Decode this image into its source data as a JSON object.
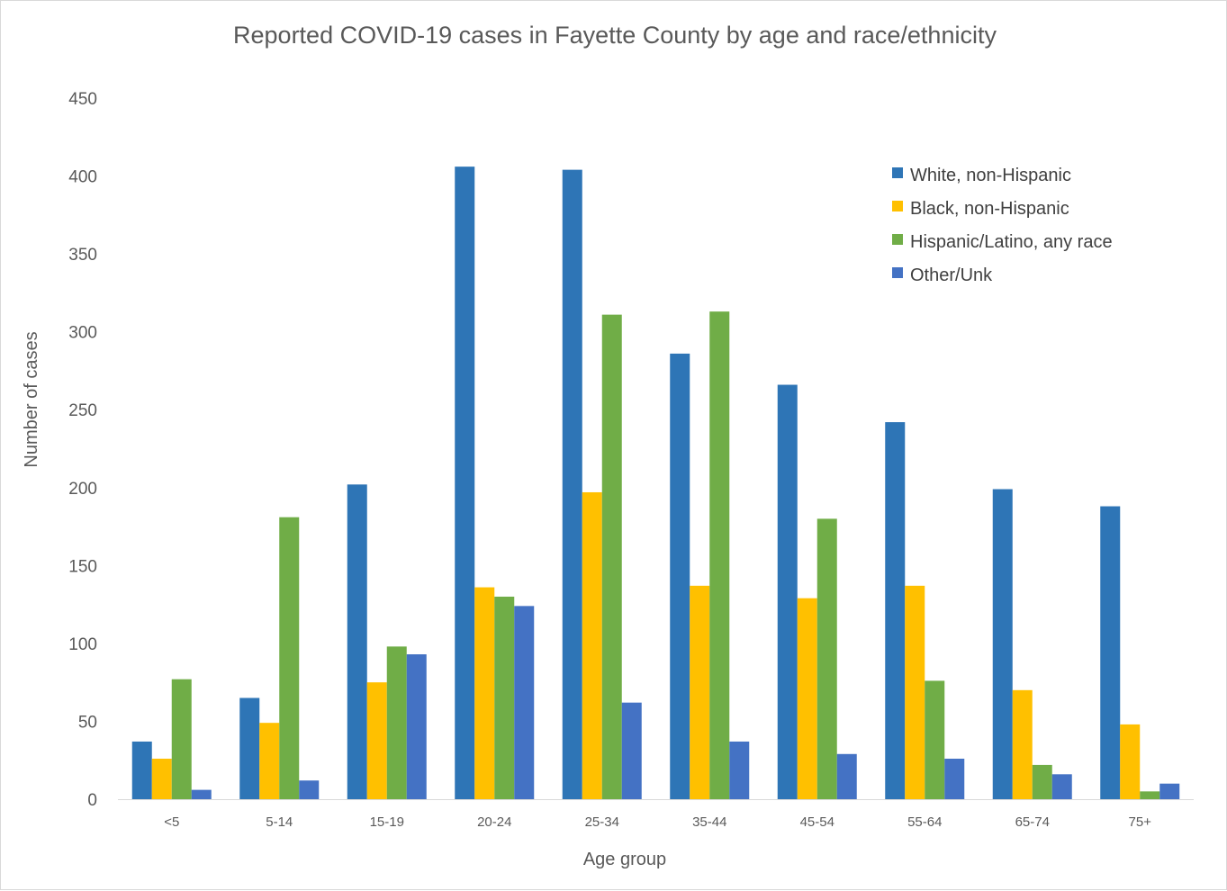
{
  "chart_data": {
    "type": "bar",
    "title": "Reported COVID-19 cases in Fayette County by age and race/ethnicity",
    "xlabel": "Age group",
    "ylabel": "Number of cases",
    "ylim": [
      0,
      450
    ],
    "yticks": [
      "0",
      "50",
      "100",
      "150",
      "200",
      "250",
      "300",
      "350",
      "400",
      "450"
    ],
    "categories": [
      "<5",
      "5-14",
      "15-19",
      "20-24",
      "25-34",
      "35-44",
      "45-54",
      "55-64",
      "65-74",
      "75+"
    ],
    "series": [
      {
        "name": "White, non-Hispanic",
        "color": "#2E75B6",
        "values": [
          37,
          65,
          202,
          406,
          404,
          286,
          266,
          242,
          199,
          188
        ]
      },
      {
        "name": "Black, non-Hispanic",
        "color": "#FFC000",
        "values": [
          26,
          49,
          75,
          136,
          197,
          137,
          129,
          137,
          70,
          48
        ]
      },
      {
        "name": "Hispanic/Latino, any race",
        "color": "#70AD47",
        "values": [
          77,
          181,
          98,
          130,
          311,
          313,
          180,
          76,
          22,
          5
        ]
      },
      {
        "name": "Other/Unk",
        "color": "#4472C4",
        "values": [
          6,
          12,
          93,
          124,
          62,
          37,
          29,
          26,
          16,
          10
        ]
      }
    ],
    "grid": false,
    "legend_position": "top-right"
  }
}
